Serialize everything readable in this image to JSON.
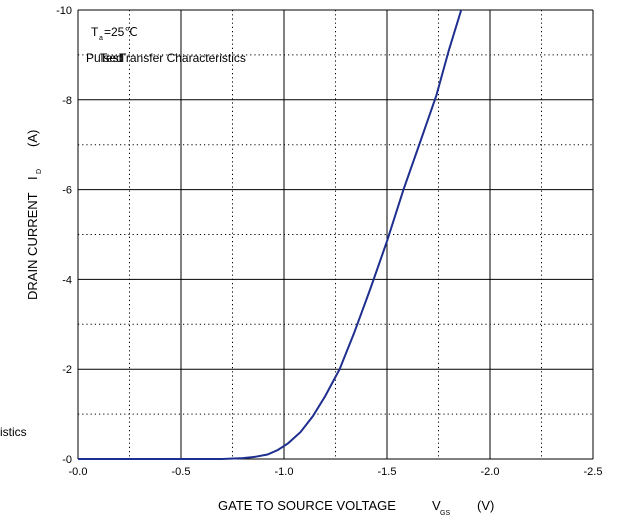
{
  "chart_data": {
    "type": "line",
    "ann_ta_main": "T",
    "ann_ta_sub": "a",
    "ann_ta_value": "=25℃",
    "ann_pulse_overlap": "Pulsed",
    "ann_test_overlap": "Test",
    "ann_title": "Transfer Characteristics",
    "left_clip_text": "istics",
    "xlabel_main": "GATE TO SOURCE VOLTAGE",
    "xlabel_sym": "V",
    "xlabel_sub": "GS",
    "xlabel_unit": "(V)",
    "ylabel_main": "DRAIN CURRENT",
    "ylabel_sym": "I",
    "ylabel_sub": "D",
    "ylabel_unit": "(A)",
    "xlim": [
      0.0,
      -2.5
    ],
    "ylim": [
      0,
      -10
    ],
    "x_ticks": [
      "-0.0",
      "-0.5",
      "-1.0",
      "-1.5",
      "-2.0",
      "-2.5"
    ],
    "y_ticks": [
      "-0",
      "-2",
      "-4",
      "-6",
      "-8",
      "-10"
    ],
    "grid": "solid major, dotted minor",
    "series": [
      {
        "color": "#1f2f8f",
        "x": [
          0.0,
          -0.7,
          -0.8,
          -0.86,
          -0.92,
          -0.97,
          -1.02,
          -1.08,
          -1.14,
          -1.2,
          -1.27,
          -1.34,
          -1.42,
          -1.5,
          -1.58,
          -1.66,
          -1.74,
          -1.8,
          -1.86
        ],
        "y": [
          0.0,
          0.0,
          -0.02,
          -0.05,
          -0.1,
          -0.2,
          -0.35,
          -0.6,
          -0.95,
          -1.4,
          -2.0,
          -2.8,
          -3.8,
          -4.85,
          -6.0,
          -7.05,
          -8.1,
          -9.1,
          -10.0
        ]
      }
    ]
  }
}
